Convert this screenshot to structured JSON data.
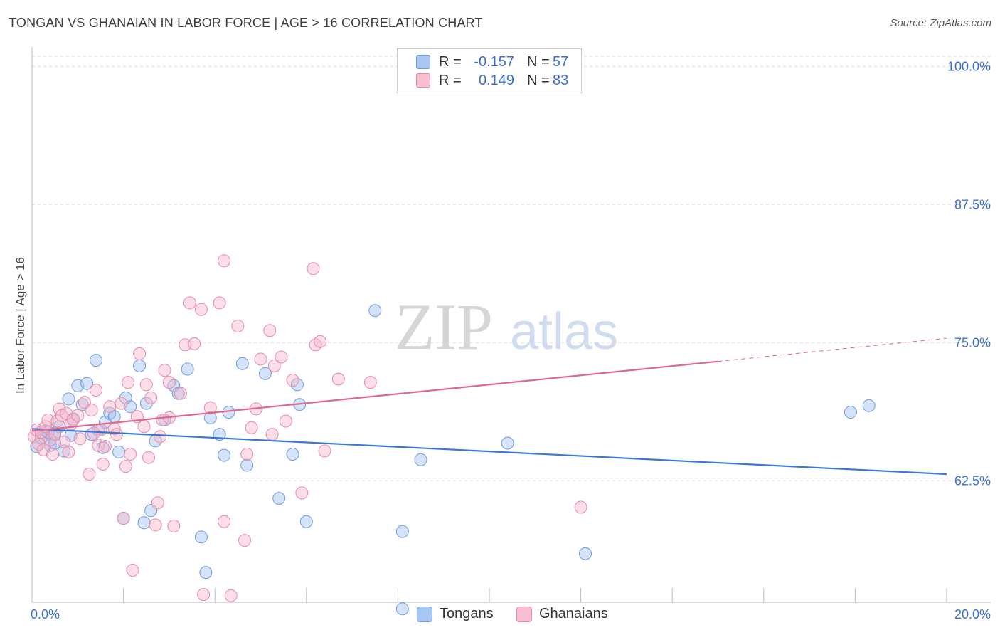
{
  "header": {
    "title": "TONGAN VS GHANAIAN IN LABOR FORCE | AGE > 16 CORRELATION CHART",
    "source": "Source: ZipAtlas.com"
  },
  "watermark": {
    "zip": "ZIP",
    "atlas": "atlas"
  },
  "legend": {
    "rows": [
      {
        "r_label": "R =",
        "r_value": "-0.157",
        "n_label": "N =",
        "n_value": "57",
        "color": "#a9c6f0",
        "border": "#6f9be0"
      },
      {
        "r_label": "R =",
        "r_value": "0.149",
        "n_label": "N =",
        "n_value": "83",
        "color": "#f7bfcf",
        "border": "#e88aa6"
      }
    ]
  },
  "bottom_legend": [
    {
      "label": "Tongans",
      "color": "#a9c6f0",
      "border": "#6f9be0"
    },
    {
      "label": "Ghanaians",
      "color": "#f7bfcf",
      "border": "#e88aa6"
    }
  ],
  "chart_data": {
    "type": "scatter",
    "title": "TONGAN VS GHANAIAN IN LABOR FORCE | AGE > 16 CORRELATION CHART",
    "xlabel": "",
    "ylabel": "In Labor Force | Age > 16",
    "xlim": [
      0,
      20
    ],
    "ylim": [
      51.5,
      101.5
    ],
    "x_tick_labels": [
      "0.0%",
      "20.0%"
    ],
    "y_ticks": [
      62.5,
      75.0,
      87.5,
      100.0
    ],
    "y_tick_labels": [
      "62.5%",
      "75.0%",
      "87.5%",
      "100.0%"
    ],
    "grid": true,
    "legend_position": "top-center",
    "colors": {
      "tongans": "#3a78d6",
      "ghanaians": "#e0678f",
      "tick_label": "#3a6fd8"
    },
    "series": [
      {
        "name": "Tongans",
        "trend": {
          "x0": 0.0,
          "y0": 67.2,
          "x1": 20.0,
          "y1": 63.1
        },
        "points": [
          [
            0.1,
            65.6
          ],
          [
            0.2,
            66.4
          ],
          [
            0.3,
            67.0
          ],
          [
            0.4,
            65.7
          ],
          [
            0.5,
            66.8
          ],
          [
            0.5,
            65.9
          ],
          [
            0.6,
            67.4
          ],
          [
            0.7,
            65.2
          ],
          [
            0.8,
            69.9
          ],
          [
            0.85,
            66.6
          ],
          [
            0.9,
            68.1
          ],
          [
            1.0,
            71.1
          ],
          [
            1.1,
            69.4
          ],
          [
            1.2,
            71.3
          ],
          [
            1.3,
            66.7
          ],
          [
            1.4,
            73.4
          ],
          [
            1.45,
            67.1
          ],
          [
            1.55,
            65.5
          ],
          [
            1.6,
            67.8
          ],
          [
            1.7,
            68.6
          ],
          [
            1.8,
            68.3
          ],
          [
            1.9,
            65.1
          ],
          [
            2.0,
            59.1
          ],
          [
            2.05,
            70.0
          ],
          [
            2.15,
            69.2
          ],
          [
            2.35,
            72.9
          ],
          [
            2.45,
            58.7
          ],
          [
            2.5,
            69.5
          ],
          [
            2.6,
            59.8
          ],
          [
            2.7,
            66.1
          ],
          [
            2.9,
            68.0
          ],
          [
            3.1,
            71.1
          ],
          [
            3.2,
            70.4
          ],
          [
            3.4,
            72.6
          ],
          [
            3.7,
            57.4
          ],
          [
            3.8,
            54.2
          ],
          [
            3.9,
            68.2
          ],
          [
            4.1,
            66.7
          ],
          [
            4.2,
            64.8
          ],
          [
            4.3,
            68.7
          ],
          [
            4.6,
            73.1
          ],
          [
            4.7,
            63.9
          ],
          [
            5.1,
            72.2
          ],
          [
            5.4,
            60.9
          ],
          [
            5.7,
            64.9
          ],
          [
            5.8,
            71.2
          ],
          [
            5.85,
            69.4
          ],
          [
            6.0,
            58.8
          ],
          [
            7.5,
            77.9
          ],
          [
            8.1,
            57.9
          ],
          [
            8.1,
            50.9
          ],
          [
            8.5,
            64.4
          ],
          [
            10.4,
            65.9
          ],
          [
            12.1,
            55.9
          ],
          [
            17.9,
            68.7
          ],
          [
            18.3,
            69.3
          ],
          [
            0.35,
            66.9
          ]
        ]
      },
      {
        "name": "Ghanaians",
        "trend": {
          "x0": 0.0,
          "y0": 67.0,
          "x1": 15.0,
          "y1": 73.3,
          "dashed_to_x": 20.0,
          "dashed_to_y": 75.4
        },
        "points": [
          [
            0.05,
            66.5
          ],
          [
            0.1,
            67.1
          ],
          [
            0.15,
            65.8
          ],
          [
            0.2,
            66.9
          ],
          [
            0.25,
            65.3
          ],
          [
            0.3,
            67.4
          ],
          [
            0.35,
            68.0
          ],
          [
            0.4,
            66.2
          ],
          [
            0.45,
            64.9
          ],
          [
            0.5,
            66.7
          ],
          [
            0.55,
            67.9
          ],
          [
            0.6,
            69.0
          ],
          [
            0.65,
            68.4
          ],
          [
            0.7,
            66.0
          ],
          [
            0.75,
            68.6
          ],
          [
            0.8,
            65.1
          ],
          [
            0.85,
            67.6
          ],
          [
            0.9,
            68.0
          ],
          [
            1.0,
            68.4
          ],
          [
            1.05,
            66.3
          ],
          [
            1.15,
            69.6
          ],
          [
            1.25,
            63.1
          ],
          [
            1.3,
            68.9
          ],
          [
            1.4,
            70.7
          ],
          [
            1.45,
            65.7
          ],
          [
            1.5,
            67.1
          ],
          [
            1.55,
            64.0
          ],
          [
            1.6,
            65.6
          ],
          [
            1.7,
            69.2
          ],
          [
            1.8,
            67.2
          ],
          [
            1.85,
            66.7
          ],
          [
            1.95,
            69.5
          ],
          [
            2.0,
            59.1
          ],
          [
            2.05,
            63.8
          ],
          [
            2.1,
            71.4
          ],
          [
            2.15,
            64.9
          ],
          [
            2.2,
            54.4
          ],
          [
            2.3,
            68.3
          ],
          [
            2.35,
            74.0
          ],
          [
            2.45,
            67.4
          ],
          [
            2.5,
            71.2
          ],
          [
            2.55,
            64.6
          ],
          [
            2.6,
            70.0
          ],
          [
            2.7,
            58.5
          ],
          [
            2.75,
            60.5
          ],
          [
            2.85,
            68.0
          ],
          [
            2.9,
            72.5
          ],
          [
            3.0,
            71.4
          ],
          [
            3.1,
            58.4
          ],
          [
            3.25,
            70.4
          ],
          [
            3.35,
            74.8
          ],
          [
            3.45,
            78.6
          ],
          [
            3.55,
            74.9
          ],
          [
            3.7,
            78.0
          ],
          [
            3.75,
            52.2
          ],
          [
            3.9,
            69.1
          ],
          [
            4.1,
            78.6
          ],
          [
            4.2,
            82.4
          ],
          [
            4.2,
            58.8
          ],
          [
            4.35,
            52.1
          ],
          [
            4.5,
            76.5
          ],
          [
            4.65,
            57.1
          ],
          [
            4.7,
            64.9
          ],
          [
            4.8,
            67.3
          ],
          [
            4.9,
            69.0
          ],
          [
            5.0,
            73.5
          ],
          [
            5.2,
            76.1
          ],
          [
            5.25,
            66.7
          ],
          [
            5.3,
            72.9
          ],
          [
            5.45,
            73.7
          ],
          [
            5.55,
            67.9
          ],
          [
            5.7,
            71.6
          ],
          [
            5.9,
            61.4
          ],
          [
            6.15,
            81.7
          ],
          [
            6.2,
            74.8
          ],
          [
            6.3,
            75.1
          ],
          [
            6.4,
            65.2
          ],
          [
            6.7,
            71.7
          ],
          [
            7.4,
            71.4
          ],
          [
            12.0,
            60.1
          ],
          [
            1.35,
            66.8
          ],
          [
            2.8,
            66.5
          ],
          [
            3.0,
            68.2
          ]
        ]
      }
    ]
  }
}
